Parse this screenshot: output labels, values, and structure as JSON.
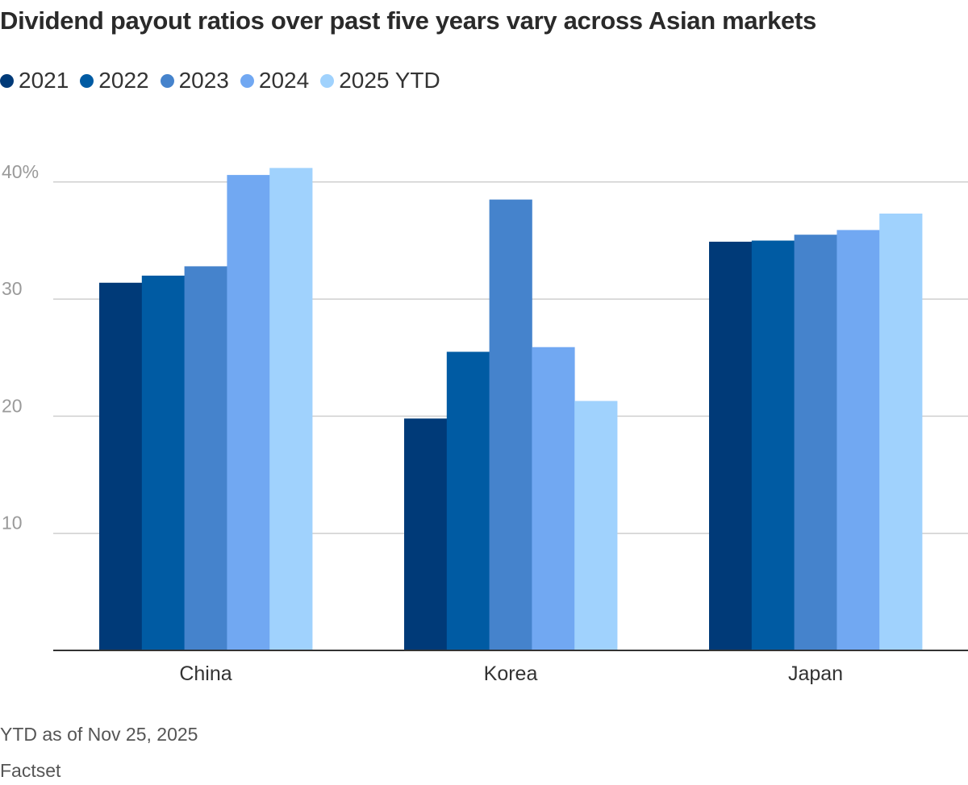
{
  "chart_data": {
    "type": "bar",
    "title": "Dividend payout ratios over past five years vary across Asian markets",
    "categories": [
      "China",
      "Korea",
      "Japan"
    ],
    "series": [
      {
        "name": "2021",
        "color": "#003a78",
        "values": [
          31.4,
          19.8,
          34.9
        ]
      },
      {
        "name": "2022",
        "color": "#005ba3",
        "values": [
          32.0,
          25.5,
          35.0
        ]
      },
      {
        "name": "2023",
        "color": "#4583cc",
        "values": [
          32.8,
          38.5,
          35.5
        ]
      },
      {
        "name": "2024",
        "color": "#71a8f2",
        "values": [
          40.6,
          25.9,
          35.9
        ]
      },
      {
        "name": "2025 YTD",
        "color": "#a0d2fd",
        "values": [
          41.2,
          21.3,
          37.3
        ]
      }
    ],
    "yticks": [
      10,
      20,
      30,
      40
    ],
    "ytick_labels": [
      "10",
      "20",
      "30",
      "40%"
    ],
    "ylim": [
      0,
      45
    ],
    "grid": true,
    "legend_position": "top-left"
  },
  "note": "YTD as of Nov 25, 2025",
  "source": "Factset"
}
